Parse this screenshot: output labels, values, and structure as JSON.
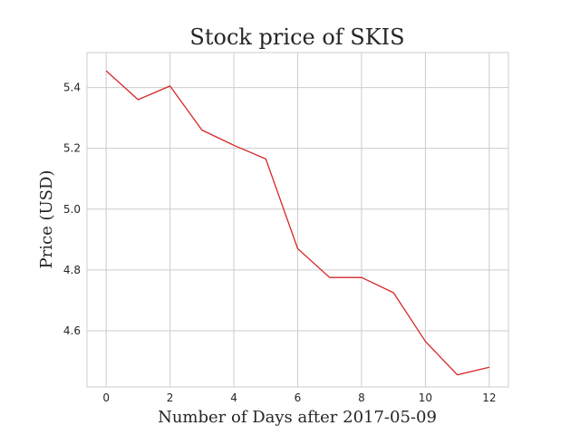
{
  "chart_data": {
    "type": "line",
    "title": "Stock price of SKIS",
    "xlabel": "Number of Days after 2017-05-09",
    "ylabel": "Price (USD)",
    "xlim": [
      -0.6,
      12.6
    ],
    "ylim": [
      4.415,
      5.515
    ],
    "x_ticks": [
      0,
      2,
      4,
      6,
      8,
      10,
      12
    ],
    "y_ticks": [
      4.6,
      4.8,
      5.0,
      5.2,
      5.4
    ],
    "y_tick_labels": [
      "4.6",
      "4.8",
      "5.0",
      "5.2",
      "5.4"
    ],
    "grid": true,
    "series": [
      {
        "color": "#d62728",
        "x": [
          0,
          1,
          2,
          3,
          4,
          5,
          6,
          7,
          8,
          9,
          10,
          11,
          12
        ],
        "y": [
          5.455,
          5.36,
          5.405,
          5.26,
          5.21,
          5.165,
          4.87,
          4.775,
          4.775,
          4.725,
          4.565,
          4.455,
          4.48
        ]
      }
    ]
  }
}
